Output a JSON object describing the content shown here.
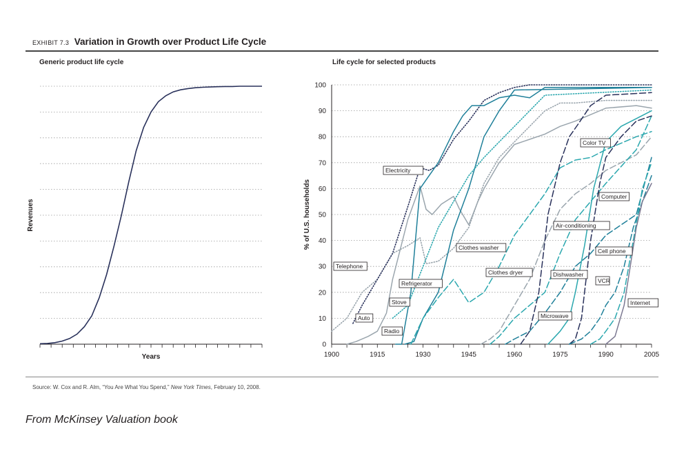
{
  "header": {
    "exhibit_number": "EXHIBIT 7.3",
    "title": "Variation in Growth over Product Life Cycle"
  },
  "source": {
    "prefix": "Source: W. Cox and R. Alm, “You Are What You Spend,”",
    "publication": "New York Times",
    "suffix": ", February 10, 2008."
  },
  "caption": "From McKinsey Valuation book",
  "colors": {
    "navy": "#28305a",
    "teal": "#1e7f99",
    "aqua": "#2aa7ae",
    "gray": "#9aa5ad",
    "grid": "#9a9a9a"
  },
  "chart_data": [
    {
      "type": "line",
      "title": "Generic product life cycle",
      "xlabel": "Years",
      "ylabel": "Revenues",
      "grid": true,
      "x": [
        0,
        1,
        2,
        3,
        4,
        5,
        6,
        7,
        8,
        9,
        10,
        11,
        12,
        13,
        14,
        15,
        16,
        17,
        18,
        19,
        20,
        21,
        22,
        23,
        24,
        25,
        26,
        27,
        28,
        29,
        30
      ],
      "series": [
        {
          "values": [
            0.2,
            0.3,
            0.6,
            1.2,
            2.2,
            3.9,
            6.8,
            11,
            18,
            27,
            38,
            50,
            63,
            75,
            84,
            90,
            94,
            96.3,
            97.8,
            98.6,
            99.1,
            99.4,
            99.6,
            99.7,
            99.8,
            99.9,
            99.9,
            100,
            100,
            100,
            100
          ]
        }
      ]
    },
    {
      "type": "line",
      "title": "Life cycle for selected products",
      "xlabel": "",
      "ylabel": "% of U.S. households",
      "xlim": [
        1900,
        2005
      ],
      "ylim": [
        0,
        100
      ],
      "x_ticks": [
        "1900",
        "1915",
        "1930",
        "1945",
        "1960",
        "1975",
        "1990",
        "2005"
      ],
      "y_ticks": [
        "0",
        "10",
        "20",
        "30",
        "40",
        "50",
        "60",
        "70",
        "80",
        "90",
        "100"
      ],
      "grid": true,
      "series": [
        {
          "name": "Telephone",
          "color": "#9aa5ad",
          "dash": "dotted",
          "x": [
            1900,
            1905,
            1910,
            1915,
            1920,
            1925,
            1929,
            1931,
            1935,
            1940,
            1945,
            1950,
            1955,
            1960,
            1965,
            1970,
            1975,
            1980,
            1990,
            2000,
            2005
          ],
          "y": [
            5,
            10,
            20,
            25,
            35,
            38,
            41,
            31,
            32,
            37,
            45,
            62,
            72,
            78,
            84,
            90,
            93,
            93,
            94,
            94,
            94
          ]
        },
        {
          "name": "Electricity",
          "color": "#28305a",
          "dash": "dotted",
          "x": [
            1907,
            1910,
            1915,
            1920,
            1925,
            1929,
            1932,
            1935,
            1940,
            1945,
            1950,
            1955,
            1960,
            1965,
            2005
          ],
          "y": [
            8,
            15,
            25,
            35,
            53,
            68,
            67,
            69,
            79,
            86,
            94,
            97,
            99,
            100,
            100
          ]
        },
        {
          "name": "Auto",
          "color": "#9aa5ad",
          "dash": "solid",
          "x": [
            1905,
            1908,
            1912,
            1915,
            1918,
            1920,
            1925,
            1929,
            1931,
            1933,
            1936,
            1940,
            1942,
            1945,
            1948,
            1950,
            1955,
            1960,
            1965,
            1970,
            1975,
            1980,
            1990,
            2000,
            2005
          ],
          "y": [
            0,
            1,
            3,
            5,
            12,
            25,
            48,
            61,
            52,
            50,
            54,
            57,
            52,
            46,
            55,
            60,
            70,
            77,
            79,
            81,
            84,
            86,
            91,
            92,
            91
          ]
        },
        {
          "name": "Radio",
          "color": "#1e7f99",
          "dash": "solid",
          "x": [
            1921,
            1923,
            1926,
            1929,
            1932,
            1935,
            1940,
            1943,
            1946,
            1950,
            1955,
            1960,
            1965,
            1970,
            1990,
            2005
          ],
          "y": [
            0,
            0,
            20,
            60,
            65,
            70,
            82,
            88,
            92,
            92,
            95,
            96,
            95,
            99,
            99,
            99
          ]
        },
        {
          "name": "Refrigerator",
          "color": "#1e7f99",
          "dash": "solid",
          "x": [
            1924,
            1927,
            1930,
            1935,
            1940,
            1945,
            1950,
            1955,
            1960,
            2005
          ],
          "y": [
            0,
            1,
            10,
            20,
            44,
            60,
            80,
            90,
            98,
            99
          ]
        },
        {
          "name": "Stove",
          "color": "#2aa7ae",
          "dash": "dotted",
          "x": [
            1920,
            1925,
            1930,
            1935,
            1940,
            1945,
            1950,
            1955,
            1960,
            1965,
            1970,
            2005
          ],
          "y": [
            10,
            15,
            30,
            45,
            55,
            65,
            72,
            78,
            84,
            90,
            96,
            98
          ]
        },
        {
          "name": "Clothes washer",
          "color": "#2aa7ae",
          "dash": "dashed",
          "x": [
            1926,
            1930,
            1935,
            1940,
            1945,
            1950,
            1955,
            1960,
            1965,
            1970,
            1975,
            1980,
            1985,
            1990,
            2000,
            2005
          ],
          "y": [
            0,
            10,
            18,
            25,
            16,
            20,
            30,
            42,
            50,
            58,
            68,
            71,
            72,
            75,
            80,
            82
          ]
        },
        {
          "name": "Clothes dryer",
          "color": "#9aa5ad",
          "dash": "dashed",
          "x": [
            1949,
            1952,
            1955,
            1960,
            1965,
            1970,
            1975,
            1980,
            1985,
            1990,
            2000,
            2005
          ],
          "y": [
            0,
            2,
            5,
            15,
            25,
            40,
            52,
            58,
            62,
            67,
            73,
            80
          ]
        },
        {
          "name": "Air-conditioning",
          "color": "#2aa7ae",
          "dash": "dashed",
          "x": [
            1952,
            1955,
            1960,
            1965,
            1970,
            1975,
            1980,
            1985,
            1990,
            2000,
            2005
          ],
          "y": [
            0,
            3,
            10,
            15,
            20,
            35,
            48,
            55,
            62,
            75,
            88
          ]
        },
        {
          "name": "Dishwasher",
          "color": "#1e7f99",
          "dash": "dashed",
          "x": [
            1957,
            1960,
            1965,
            1970,
            1975,
            1980,
            1985,
            1990,
            2000,
            2005
          ],
          "y": [
            0,
            2,
            5,
            12,
            20,
            30,
            35,
            42,
            50,
            72
          ]
        },
        {
          "name": "Color TV",
          "color": "#28305a",
          "dash": "dashed",
          "x": [
            1962,
            1965,
            1968,
            1971,
            1975,
            1978,
            1981,
            1985,
            1990,
            2005
          ],
          "y": [
            0,
            5,
            20,
            50,
            70,
            80,
            85,
            92,
            96,
            97
          ]
        },
        {
          "name": "Microwave",
          "color": "#2aa7ae",
          "dash": "solid",
          "x": [
            1971,
            1975,
            1978,
            1980,
            1983,
            1986,
            1990,
            1995,
            2000,
            2005
          ],
          "y": [
            0,
            5,
            10,
            20,
            38,
            60,
            78,
            84,
            87,
            90
          ]
        },
        {
          "name": "VCR",
          "color": "#28305a",
          "dash": "dashed",
          "x": [
            1978,
            1980,
            1982,
            1985,
            1988,
            1990,
            1995,
            2000,
            2005
          ],
          "y": [
            0,
            2,
            10,
            40,
            62,
            72,
            80,
            86,
            88
          ]
        },
        {
          "name": "Computer",
          "color": "#1e7f99",
          "dash": "dashed",
          "x": [
            1978,
            1982,
            1985,
            1988,
            1990,
            1993,
            1996,
            1999,
            2002,
            2005
          ],
          "y": [
            0,
            2,
            5,
            10,
            15,
            20,
            30,
            45,
            55,
            65
          ]
        },
        {
          "name": "Cell phone",
          "color": "#2aa7ae",
          "dash": "dashed",
          "x": [
            1985,
            1988,
            1990,
            1993,
            1996,
            1999,
            2002,
            2005
          ],
          "y": [
            0,
            2,
            5,
            10,
            20,
            40,
            60,
            70
          ]
        },
        {
          "name": "Internet",
          "color": "#7b7891",
          "dash": "solid",
          "x": [
            1990,
            1993,
            1996,
            1998,
            2000,
            2002,
            2005
          ],
          "y": [
            0,
            3,
            15,
            30,
            45,
            55,
            62
          ]
        }
      ]
    }
  ],
  "labels": {
    "telephone": "Telephone",
    "electricity": "Electricity",
    "auto": "Auto",
    "radio": "Radio",
    "refrigerator": "Refrigerator",
    "stove": "Stove",
    "clothes_washer": "Clothes washer",
    "clothes_dryer": "Clothes dryer",
    "air_conditioning": "Air-conditioning",
    "dishwasher": "Dishwasher",
    "color_tv": "Color TV",
    "microwave": "Microwave",
    "vcr": "VCR",
    "computer": "Computer",
    "cell_phone": "Cell phone",
    "internet": "Internet"
  }
}
